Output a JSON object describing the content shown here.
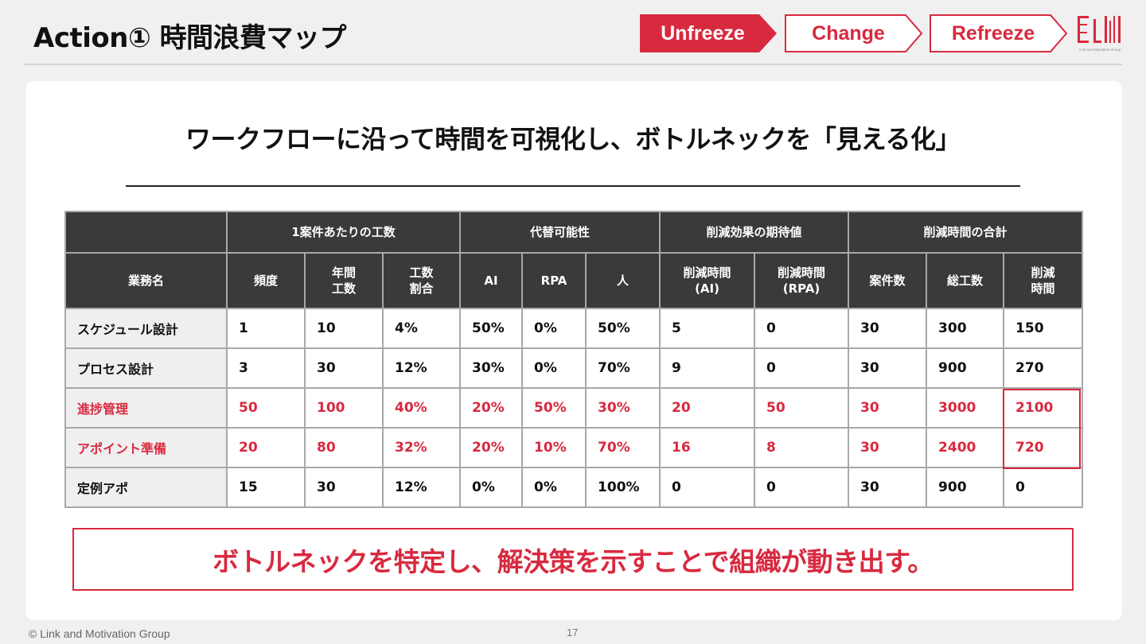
{
  "page": {
    "title": "Action①  時間浪費マップ",
    "steps": [
      "Unfreeze",
      "Change",
      "Refreeze"
    ],
    "active_step": "Unfreeze",
    "headline": "ワークフローに沿って時間を可視化し、ボトルネックを「見える化」",
    "callout": "ボトルネックを特定し、解決策を示すことで組織が動き出す。",
    "copyright": "© Link and Motivation Group",
    "page_number": "17",
    "logo_text": "Link and Motivation Group"
  },
  "colors": {
    "accent": "#d8293f",
    "header_bg": "#3a3a3a",
    "name_cell_bg": "#efefef"
  },
  "table": {
    "groups": [
      "1案件あたりの工数",
      "代替可能性",
      "削減効果の期待値",
      "削減時間の合計"
    ],
    "columns": [
      "業務名",
      "頻度",
      "年間\n工数",
      "工数\n割合",
      "AI",
      "RPA",
      "人",
      "削減時間\n(AI)",
      "削減時間\n(RPA)",
      "案件数",
      "総工数",
      "削減\n時間"
    ],
    "rows": [
      {
        "highlight": false,
        "cells": [
          "スケジュール設計",
          "1",
          "10",
          "4%",
          "50%",
          "0%",
          "50%",
          "5",
          "0",
          "30",
          "300",
          "150"
        ]
      },
      {
        "highlight": false,
        "cells": [
          "プロセス設計",
          "3",
          "30",
          "12%",
          "30%",
          "0%",
          "70%",
          "9",
          "0",
          "30",
          "900",
          "270"
        ]
      },
      {
        "highlight": true,
        "cells": [
          "進捗管理",
          "50",
          "100",
          "40%",
          "20%",
          "50%",
          "30%",
          "20",
          "50",
          "30",
          "3000",
          "2100"
        ]
      },
      {
        "highlight": true,
        "cells": [
          "アポイント準備",
          "20",
          "80",
          "32%",
          "20%",
          "10%",
          "70%",
          "16",
          "8",
          "30",
          "2400",
          "720"
        ]
      },
      {
        "highlight": false,
        "cells": [
          "定例アポ",
          "15",
          "30",
          "12%",
          "0%",
          "0%",
          "100%",
          "0",
          "0",
          "30",
          "900",
          "0"
        ]
      }
    ]
  }
}
